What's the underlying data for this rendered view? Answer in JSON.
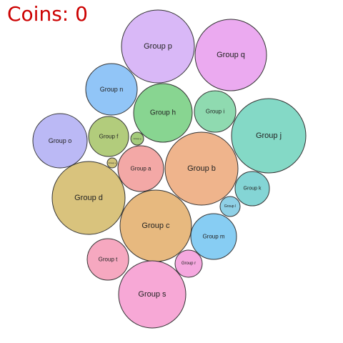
{
  "hud": {
    "coins_label": "Coins:",
    "coins_value": 0,
    "coins_color": "#cc0000"
  },
  "bubbles": [
    {
      "id": "p",
      "label": "Group p",
      "color": "#d9b8f7"
    },
    {
      "id": "q",
      "label": "Group q",
      "color": "#ebaaf0"
    },
    {
      "id": "n",
      "label": "Group n",
      "color": "#91c5f7"
    },
    {
      "id": "h",
      "label": "Group h",
      "color": "#88d591"
    },
    {
      "id": "i",
      "label": "Group i",
      "color": "#8fdab0"
    },
    {
      "id": "j",
      "label": "Group j",
      "color": "#84d9c6"
    },
    {
      "id": "o",
      "label": "Group o",
      "color": "#bbb9f5"
    },
    {
      "id": "f",
      "label": "Group f",
      "color": "#b2cc7c"
    },
    {
      "id": "g",
      "label": "Group g",
      "color": "#a5cc7c"
    },
    {
      "id": "e",
      "label": "Group e",
      "color": "#cfc37a"
    },
    {
      "id": "a",
      "label": "Group a",
      "color": "#f3a8a6"
    },
    {
      "id": "b",
      "label": "Group b",
      "color": "#efb48c"
    },
    {
      "id": "k",
      "label": "Group k",
      "color": "#84d5d5"
    },
    {
      "id": "l",
      "label": "Group l",
      "color": "#8fd0e6"
    },
    {
      "id": "d",
      "label": "Group d",
      "color": "#d9c37d"
    },
    {
      "id": "c",
      "label": "Group c",
      "color": "#e7b97f"
    },
    {
      "id": "m",
      "label": "Group m",
      "color": "#87cdf3"
    },
    {
      "id": "t",
      "label": "Group t",
      "color": "#f6a8c0"
    },
    {
      "id": "r",
      "label": "Group r",
      "color": "#f5a8df"
    },
    {
      "id": "s",
      "label": "Group s",
      "color": "#f7a8d6"
    }
  ]
}
